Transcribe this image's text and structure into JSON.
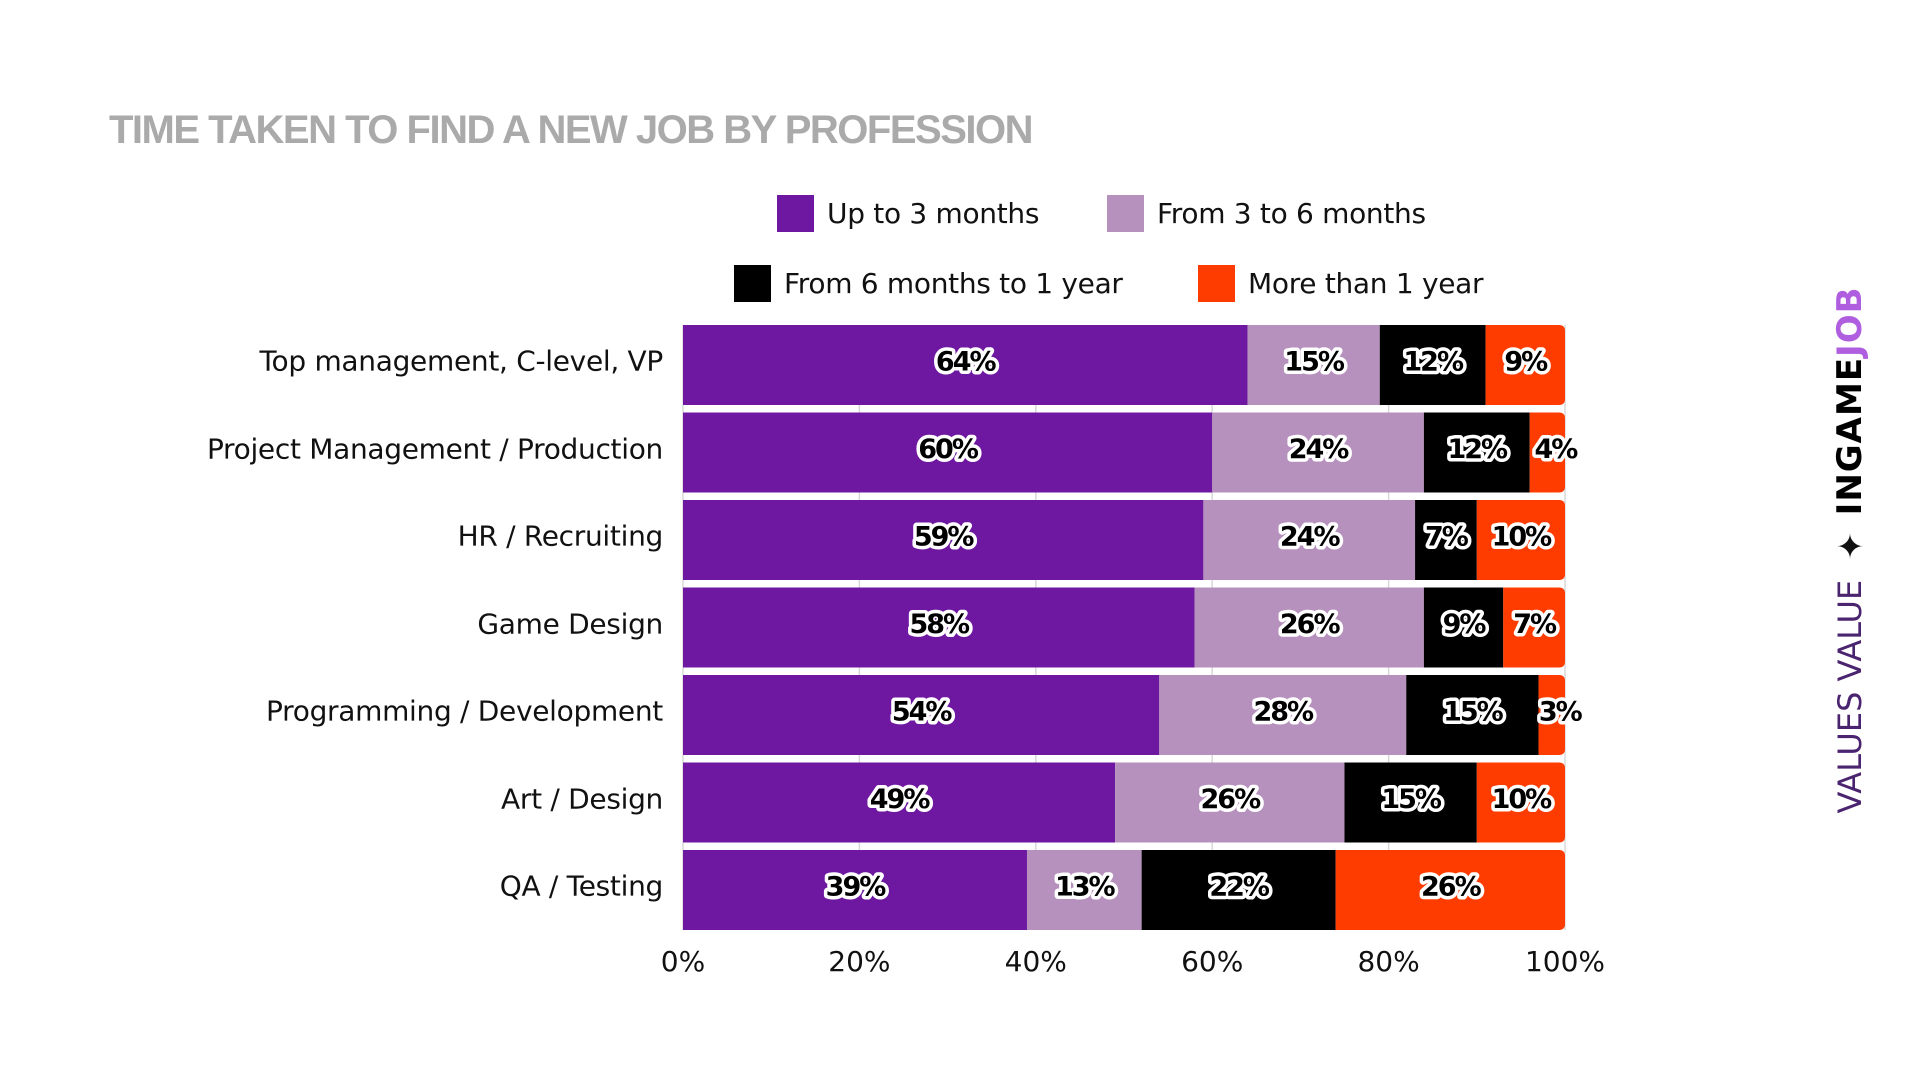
{
  "chart_data": {
    "type": "bar",
    "orientation": "horizontal",
    "stacked": true,
    "title": "TIME TAKEN TO FIND A NEW JOB BY PROFESSION",
    "xlabel": "",
    "ylabel": "",
    "xlim": [
      0,
      100
    ],
    "x_ticks": [
      "0%",
      "20%",
      "40%",
      "60%",
      "80%",
      "100%"
    ],
    "x_tick_values": [
      0,
      20,
      40,
      60,
      80,
      100
    ],
    "grid": true,
    "legend_position": "top",
    "categories": [
      "Top management, C-level, VP",
      "Project Management / Production",
      "HR / Recruiting",
      "Game Design",
      "Programming / Development",
      "Art / Design",
      "QA / Testing"
    ],
    "series": [
      {
        "name": "Up to 3 months",
        "color": "#6e17a1",
        "values": [
          64,
          60,
          59,
          58,
          54,
          49,
          39
        ]
      },
      {
        "name": "From 3 to 6 months",
        "color": "#b791bd",
        "values": [
          15,
          24,
          24,
          26,
          28,
          26,
          13
        ]
      },
      {
        "name": "From 6 months to 1 year",
        "color": "#000000",
        "values": [
          12,
          12,
          7,
          9,
          15,
          15,
          22
        ]
      },
      {
        "name": "More than 1 year",
        "color": "#ff3c00",
        "values": [
          9,
          4,
          10,
          7,
          3,
          10,
          26
        ]
      }
    ],
    "value_suffix": "%"
  },
  "brand": {
    "tagline": "VALUES VALUE",
    "star_icon": "four-point-star-icon",
    "name_part1": "INGAME",
    "name_part2": "JOB"
  }
}
